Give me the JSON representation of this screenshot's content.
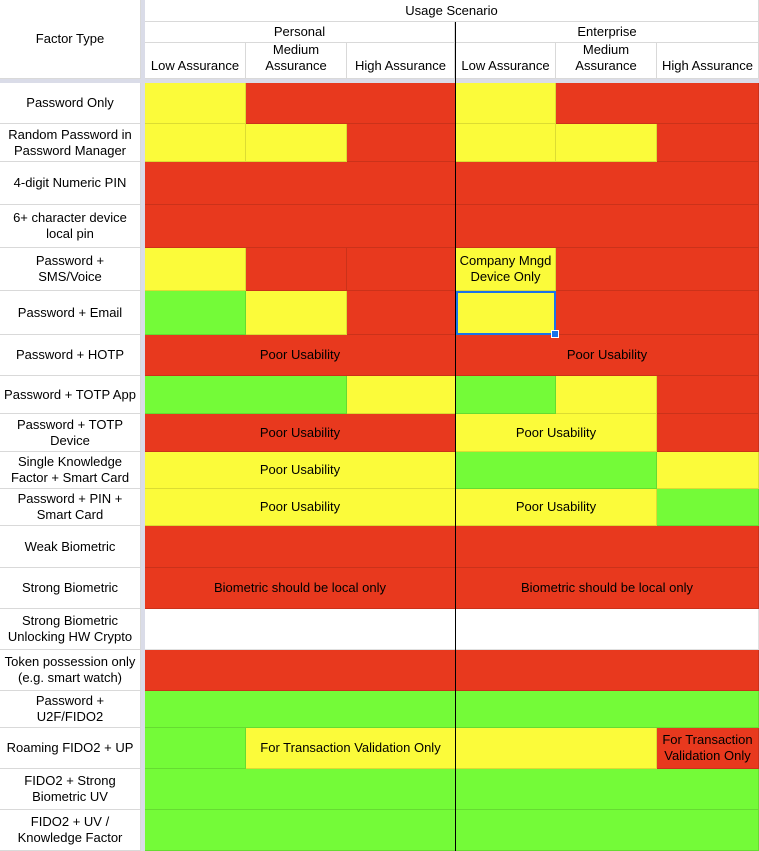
{
  "colors": {
    "red": "#e8391e",
    "yellow": "#fbfb3a",
    "green": "#74fb38",
    "white": "#ffffff"
  },
  "header": {
    "usage_scenario": "Usage Scenario",
    "factor_type": "Factor Type",
    "groups": [
      "Personal",
      "Enterprise"
    ],
    "levels": [
      "Low Assurance",
      "Medium\nAssurance",
      "High Assurance",
      "Low Assurance",
      "Medium\nAssurance",
      "High Assurance"
    ]
  },
  "rows": [
    {
      "label": "Password Only",
      "cells": [
        [
          "yellow",
          1,
          ""
        ],
        [
          "red",
          2,
          ""
        ],
        [
          "yellow",
          1,
          ""
        ],
        [
          "red",
          2,
          ""
        ]
      ]
    },
    {
      "label": "Random Password in\nPassword Manager",
      "cells": [
        [
          "yellow",
          1,
          ""
        ],
        [
          "yellow",
          1,
          ""
        ],
        [
          "red",
          1,
          ""
        ],
        [
          "yellow",
          1,
          ""
        ],
        [
          "yellow",
          1,
          ""
        ],
        [
          "red",
          1,
          ""
        ]
      ]
    },
    {
      "label": "4-digit Numeric PIN",
      "cells": [
        [
          "red",
          3,
          ""
        ],
        [
          "red",
          3,
          ""
        ]
      ]
    },
    {
      "label": "6+ character device\nlocal pin",
      "cells": [
        [
          "red",
          3,
          ""
        ],
        [
          "red",
          3,
          ""
        ]
      ]
    },
    {
      "label": "Password +\nSMS/Voice",
      "cells": [
        [
          "yellow",
          1,
          ""
        ],
        [
          "red",
          1,
          ""
        ],
        [
          "red",
          1,
          ""
        ],
        [
          "yellow",
          1,
          "Company Mngd\nDevice Only"
        ],
        [
          "red",
          2,
          ""
        ]
      ]
    },
    {
      "label": "Password + Email",
      "cells": [
        [
          "green",
          1,
          ""
        ],
        [
          "yellow",
          1,
          ""
        ],
        [
          "red",
          1,
          ""
        ],
        [
          "yellow",
          1,
          ""
        ],
        [
          "red",
          2,
          ""
        ]
      ]
    },
    {
      "label": "Password + HOTP",
      "cells": [
        [
          "red",
          3,
          "Poor Usability"
        ],
        [
          "red",
          3,
          "Poor Usability"
        ]
      ]
    },
    {
      "label": "Password + TOTP App",
      "cells": [
        [
          "green",
          2,
          ""
        ],
        [
          "yellow",
          1,
          ""
        ],
        [
          "green",
          1,
          ""
        ],
        [
          "yellow",
          1,
          ""
        ],
        [
          "red",
          1,
          ""
        ]
      ]
    },
    {
      "label": "Password + TOTP\nDevice",
      "cells": [
        [
          "red",
          3,
          "Poor Usability"
        ],
        [
          "yellow",
          2,
          "Poor Usability"
        ],
        [
          "red",
          1,
          ""
        ]
      ]
    },
    {
      "label": "Single Knowledge\nFactor + Smart Card",
      "cells": [
        [
          "yellow",
          3,
          "Poor Usability"
        ],
        [
          "green",
          2,
          ""
        ],
        [
          "yellow",
          1,
          ""
        ]
      ]
    },
    {
      "label": "Password + PIN +\nSmart Card",
      "cells": [
        [
          "yellow",
          3,
          "Poor Usability"
        ],
        [
          "yellow",
          2,
          "Poor Usability"
        ],
        [
          "green",
          1,
          ""
        ]
      ]
    },
    {
      "label": "Weak Biometric",
      "cells": [
        [
          "red",
          3,
          ""
        ],
        [
          "red",
          3,
          ""
        ]
      ]
    },
    {
      "label": "Strong Biometric",
      "cells": [
        [
          "red",
          3,
          "Biometric should be local only"
        ],
        [
          "red",
          3,
          "Biometric should be local only"
        ]
      ]
    },
    {
      "label": "Strong Biometric\nUnlocking HW Crypto",
      "cells": [
        [
          "white",
          3,
          ""
        ],
        [
          "white",
          3,
          ""
        ]
      ]
    },
    {
      "label": "Token possession only\n(e.g. smart watch)",
      "cells": [
        [
          "red",
          3,
          ""
        ],
        [
          "red",
          3,
          ""
        ]
      ]
    },
    {
      "label": "Password +\nU2F/FIDO2",
      "cells": [
        [
          "green",
          3,
          ""
        ],
        [
          "green",
          3,
          ""
        ]
      ]
    },
    {
      "label": "Roaming FIDO2 + UP",
      "cells": [
        [
          "green",
          1,
          ""
        ],
        [
          "yellow",
          2,
          "For Transaction Validation Only"
        ],
        [
          "yellow",
          2,
          ""
        ],
        [
          "red",
          1,
          "For Transaction\nValidation Only"
        ]
      ]
    },
    {
      "label": "FIDO2 + Strong\nBiometric UV",
      "cells": [
        [
          "green",
          3,
          ""
        ],
        [
          "green",
          3,
          ""
        ]
      ]
    },
    {
      "label": "FIDO2 + UV /\nKnowledge Factor",
      "cells": [
        [
          "green",
          3,
          ""
        ],
        [
          "green",
          3,
          ""
        ]
      ]
    }
  ]
}
